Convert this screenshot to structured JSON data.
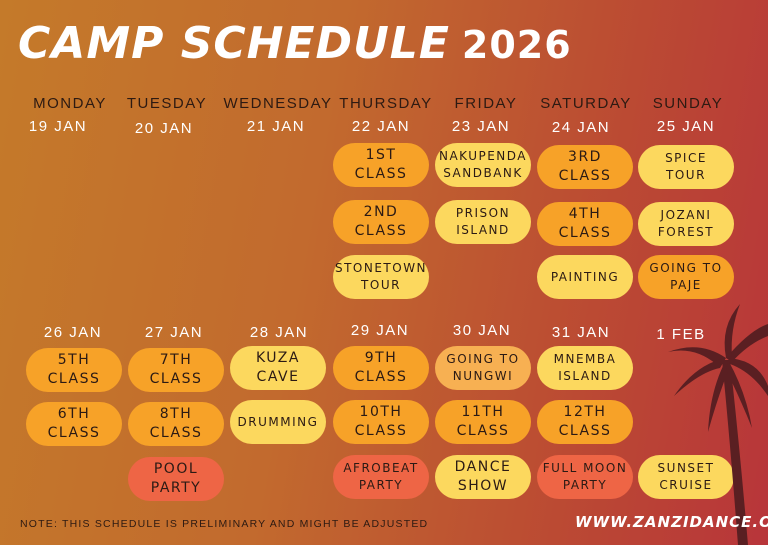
{
  "header": {
    "title": "CAMP SCHEDULE",
    "year": "2026"
  },
  "days": [
    "MONDAY",
    "TUESDAY",
    "WEDNESDAY",
    "THURSDAY",
    "FRIDAY",
    "SATURDAY",
    "SUNDAY"
  ],
  "week1": {
    "dates": [
      "19 JAN",
      "20 JAN",
      "21 JAN",
      "22 JAN",
      "23 JAN",
      "24 JAN",
      "25 JAN"
    ],
    "thursday": [
      "1ST\nCLASS",
      "2ND\nCLASS",
      "STONETOWN\nTOUR"
    ],
    "friday": [
      "NAKUPENDA\nSANDBANK",
      "PRISON\nISLAND"
    ],
    "saturday": [
      "3RD\nCLASS",
      "4TH\nCLASS",
      "PAINTING"
    ],
    "sunday": [
      "SPICE\nTOUR",
      "JOZANI\nFOREST",
      "GOING TO\nPAJE"
    ]
  },
  "week2": {
    "dates": [
      "26 JAN",
      "27 JAN",
      "28 JAN",
      "29 JAN",
      "30 JAN",
      "31 JAN",
      "1 FEB"
    ],
    "monday": [
      "5TH\nCLASS",
      "6TH\nCLASS"
    ],
    "tuesday": [
      "7TH\nCLASS",
      "8TH\nCLASS",
      "POOL\nPARTY"
    ],
    "wednesday": [
      "KUZA\nCAVE",
      "DRUMMING"
    ],
    "thursday": [
      "9TH\nCLASS",
      "10TH\nCLASS",
      "AFROBEAT\nPARTY"
    ],
    "friday": [
      "GOING TO\nNUNGWI",
      "11TH\nCLASS",
      "DANCE\nSHOW"
    ],
    "saturday": [
      "MNEMBA\nISLAND",
      "12TH\nCLASS",
      "FULL MOON\nPARTY"
    ],
    "sunday": [
      "SUNSET\nCRUISE"
    ]
  },
  "footer": {
    "note": "NOTE: THIS SCHEDULE IS PRELIMINARY AND MIGHT BE ADJUSTED",
    "website": "WWW.ZANZIDANCE.ORG"
  },
  "icons": {
    "palm": "palm-tree-icon"
  },
  "colors": {
    "orange": "#f7a228",
    "yellow": "#fcd85e",
    "peach": "#f7b052",
    "red": "#ee6545"
  }
}
